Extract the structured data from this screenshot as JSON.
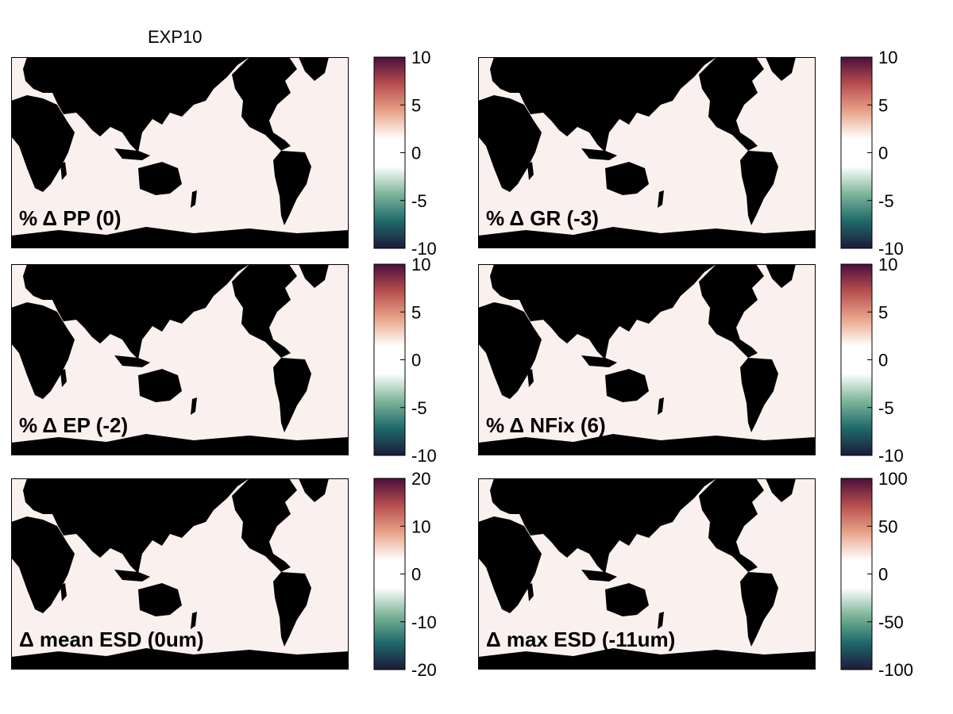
{
  "figure_title": "EXP10",
  "colormap": [
    "#1c1b3b",
    "#1f6a6a",
    "#7fb69a",
    "#ffffff",
    "#ffffff",
    "#e9a58a",
    "#b94f4f",
    "#4a0f3b"
  ],
  "land_color": "#000000",
  "panel_background": "#faf1ef",
  "chart_data": [
    {
      "type": "heatmap",
      "label": "% Δ PP (0)",
      "colorbar": {
        "min": -10,
        "max": 10,
        "ticks": [
          10,
          5,
          0,
          -5,
          -10
        ]
      }
    },
    {
      "type": "heatmap",
      "label": "% Δ GR (-3)",
      "colorbar": {
        "min": -10,
        "max": 10,
        "ticks": [
          10,
          5,
          0,
          -5,
          -10
        ]
      }
    },
    {
      "type": "heatmap",
      "label": "% Δ EP (-2)",
      "colorbar": {
        "min": -10,
        "max": 10,
        "ticks": [
          10,
          5,
          0,
          -5,
          -10
        ]
      }
    },
    {
      "type": "heatmap",
      "label": "% Δ NFix (6)",
      "colorbar": {
        "min": -10,
        "max": 10,
        "ticks": [
          10,
          5,
          0,
          -5,
          -10
        ]
      }
    },
    {
      "type": "heatmap",
      "label": "Δ mean ESD (0um)",
      "colorbar": {
        "min": -20,
        "max": 20,
        "ticks": [
          20,
          10,
          0,
          -10,
          -20
        ]
      }
    },
    {
      "type": "heatmap",
      "label": "Δ max ESD (-11um)",
      "colorbar": {
        "min": -100,
        "max": 100,
        "ticks": [
          100,
          50,
          0,
          -50,
          -100
        ]
      }
    }
  ]
}
